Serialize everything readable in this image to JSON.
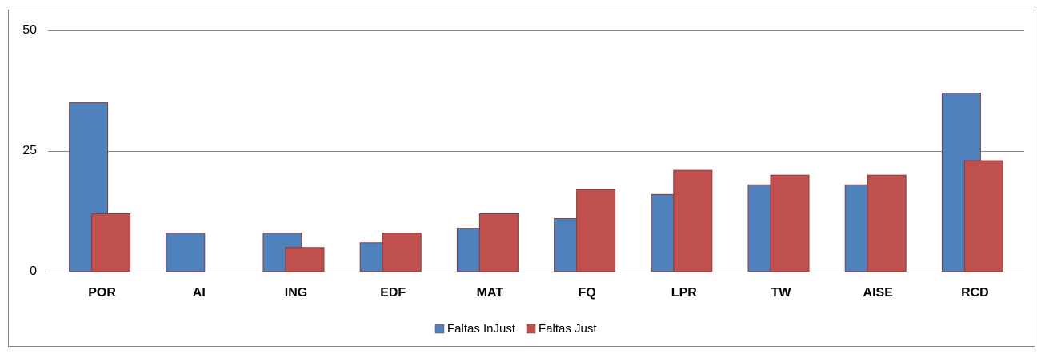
{
  "chart_data": {
    "type": "bar",
    "categories": [
      "POR",
      "AI",
      "ING",
      "EDF",
      "MAT",
      "FQ",
      "LPR",
      "TW",
      "AISE",
      "RCD"
    ],
    "series": [
      {
        "name": "Faltas InJust",
        "color": "#4f81bd",
        "values": [
          35,
          8,
          8,
          6,
          9,
          11,
          16,
          18,
          18,
          37
        ]
      },
      {
        "name": "Faltas Just",
        "color": "#c0504d",
        "values": [
          12,
          0,
          5,
          8,
          12,
          17,
          21,
          20,
          20,
          23
        ]
      }
    ],
    "ylim": [
      0,
      50
    ],
    "yticks": [
      0,
      25,
      50
    ],
    "grid": true,
    "legend": "bottom"
  }
}
